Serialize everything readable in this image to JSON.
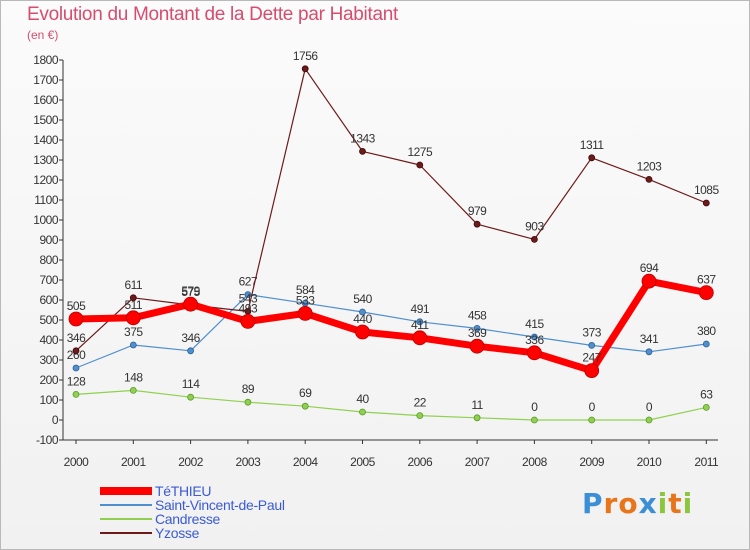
{
  "chart_data": {
    "type": "line",
    "title": "Evolution du Montant de la Dette par Habitant",
    "subtitle": "(en €)",
    "x": [
      "2000",
      "2001",
      "2002",
      "2003",
      "2004",
      "2005",
      "2006",
      "2007",
      "2008",
      "2009",
      "2010",
      "2011"
    ],
    "ylim": [
      -100,
      1800
    ],
    "yticks": [
      -100,
      0,
      100,
      200,
      300,
      400,
      500,
      600,
      700,
      800,
      900,
      1000,
      1100,
      1200,
      1300,
      1400,
      1500,
      1600,
      1700,
      1800
    ],
    "grid": false,
    "legend_position": "bottom-left",
    "series": [
      {
        "name": "TéTHIEU",
        "color": "#ff0000",
        "values": [
          505,
          511,
          579,
          493,
          533,
          440,
          411,
          369,
          336,
          247,
          694,
          637
        ],
        "labels": [
          "505",
          "511",
          "579",
          "493",
          "533",
          "440",
          "411",
          "369",
          "336",
          "247",
          "694",
          "637"
        ]
      },
      {
        "name": "Saint-Vincent-de-Paul",
        "color": "#4f8fcf",
        "values": [
          260,
          375,
          346,
          627,
          584,
          540,
          491,
          458,
          415,
          373,
          341,
          380
        ],
        "labels": [
          "260",
          "375",
          "346",
          "627",
          "584",
          "540",
          "491",
          "458",
          "415",
          "373",
          "341",
          "380"
        ]
      },
      {
        "name": "Candresse",
        "color": "#8fd14f",
        "values": [
          128,
          148,
          114,
          89,
          69,
          40,
          22,
          11,
          0,
          0,
          0,
          63
        ],
        "labels": [
          "128",
          "148",
          "114",
          "89",
          "69",
          "40",
          "22",
          "11",
          "0",
          "0",
          "0",
          "63"
        ]
      },
      {
        "name": "Yzosse",
        "color": "#6e1a1a",
        "values": [
          346,
          611,
          575,
          543,
          1756,
          1343,
          1275,
          979,
          903,
          1311,
          1203,
          1085
        ],
        "labels": [
          "346",
          "611",
          "575",
          "543",
          "1756",
          "1343",
          "1275",
          "979",
          "903",
          "1311",
          "1203",
          "1085"
        ]
      }
    ]
  },
  "legend": {
    "items": [
      {
        "label": "TéTHIEU",
        "color": "#ff0000"
      },
      {
        "label": "Saint-Vincent-de-Paul",
        "color": "#4f8fcf"
      },
      {
        "label": "Candresse",
        "color": "#8fd14f"
      },
      {
        "label": "Yzosse",
        "color": "#6e1a1a"
      }
    ]
  },
  "logo": {
    "letters": [
      "P",
      "r",
      "o",
      "x",
      "i",
      "t",
      "i"
    ],
    "colors": [
      "#3a8fd6",
      "#e8751a",
      "#e8751a",
      "#3a8fd6",
      "#8cc63f",
      "#e8751a",
      "#8cc63f"
    ]
  }
}
